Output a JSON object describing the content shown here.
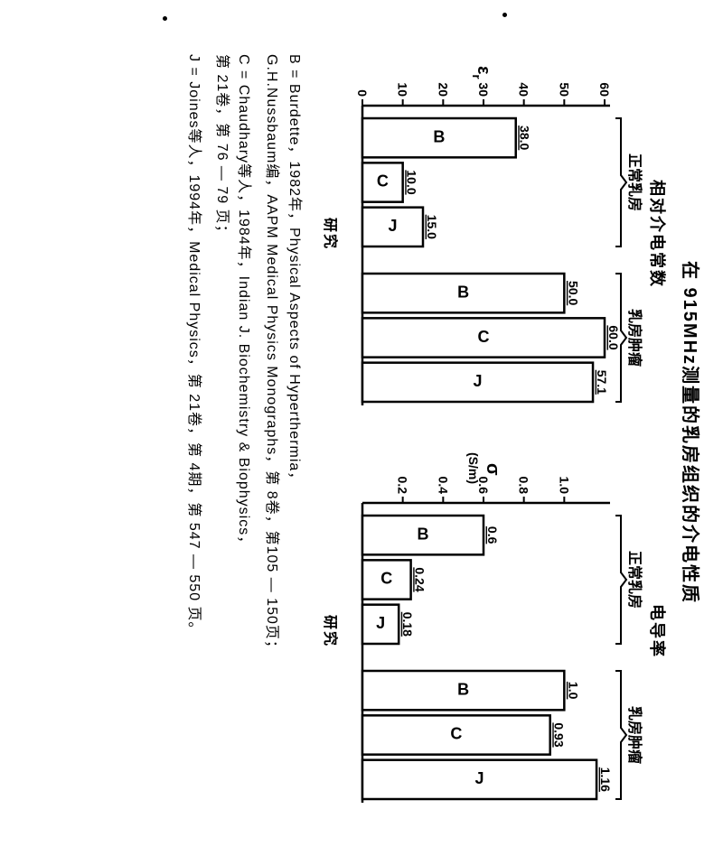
{
  "title": "在 915MHz测量的乳房组织的介电性质",
  "chart_left": {
    "type": "bar",
    "subtitle": "相对介电常数",
    "y_axis_label": "ε_r",
    "x_axis_label": "研究",
    "ylim": [
      0,
      60
    ],
    "ytick_step": 10,
    "groups": [
      {
        "label": "正常乳房",
        "bars": [
          {
            "letter": "B",
            "value": 38.0,
            "value_label": "38.0"
          },
          {
            "letter": "C",
            "value": 10.0,
            "value_label": "10.0"
          },
          {
            "letter": "J",
            "value": 15.0,
            "value_label": "15.0"
          }
        ]
      },
      {
        "label": "乳房肿瘤",
        "bars": [
          {
            "letter": "B",
            "value": 50.0,
            "value_label": "50.0"
          },
          {
            "letter": "C",
            "value": 60.0,
            "value_label": "60.0"
          },
          {
            "letter": "J",
            "value": 57.1,
            "value_label": "57.1"
          }
        ]
      }
    ],
    "bar_fill": "#ffffff",
    "bar_stroke": "#000000",
    "bar_stroke_width": 2.5,
    "axis_stroke": "#000000",
    "axis_stroke_width": 2.5,
    "tick_font_size": 14,
    "value_font_size": 14,
    "group_font_size": 16
  },
  "chart_right": {
    "type": "bar",
    "subtitle": "电导率",
    "y_axis_label": "σ\n(S/m)",
    "x_axis_label": "研究",
    "ylim": [
      0,
      1.2
    ],
    "yticks": [
      0.2,
      0.4,
      0.6,
      0.8,
      1.0
    ],
    "groups": [
      {
        "label": "正常乳房",
        "bars": [
          {
            "letter": "B",
            "value": 0.6,
            "value_label": "0.6"
          },
          {
            "letter": "C",
            "value": 0.24,
            "value_label": "0.24"
          },
          {
            "letter": "J",
            "value": 0.18,
            "value_label": "0.18"
          }
        ]
      },
      {
        "label": "乳房肿瘤",
        "bars": [
          {
            "letter": "B",
            "value": 1.0,
            "value_label": "1.0"
          },
          {
            "letter": "C",
            "value": 0.93,
            "value_label": "0.93"
          },
          {
            "letter": "J",
            "value": 1.16,
            "value_label": "1.16"
          }
        ]
      }
    ],
    "bar_fill": "#ffffff",
    "bar_stroke": "#000000",
    "bar_stroke_width": 2.5,
    "axis_stroke": "#000000",
    "axis_stroke_width": 2.5,
    "tick_font_size": 14,
    "value_font_size": 14,
    "group_font_size": 16
  },
  "references": {
    "B": "B = Burdette，1982年，Physical Aspects of Hyperthermia，\nG.H.Nussbaum编，AAPM Medical Physics Monographs，第 8卷，第105 — 150页；",
    "C": "C = Chaudhary等人，1984年，Indian J. Biochemistry & Biophysics，\n第 21卷，第 76 — 79 页；",
    "J": "J = Joines等人，1994年，Medical Physics，第 21卷，第 4期，第 547 — 550 页。"
  },
  "colors": {
    "background": "#ffffff",
    "ink": "#000000"
  }
}
